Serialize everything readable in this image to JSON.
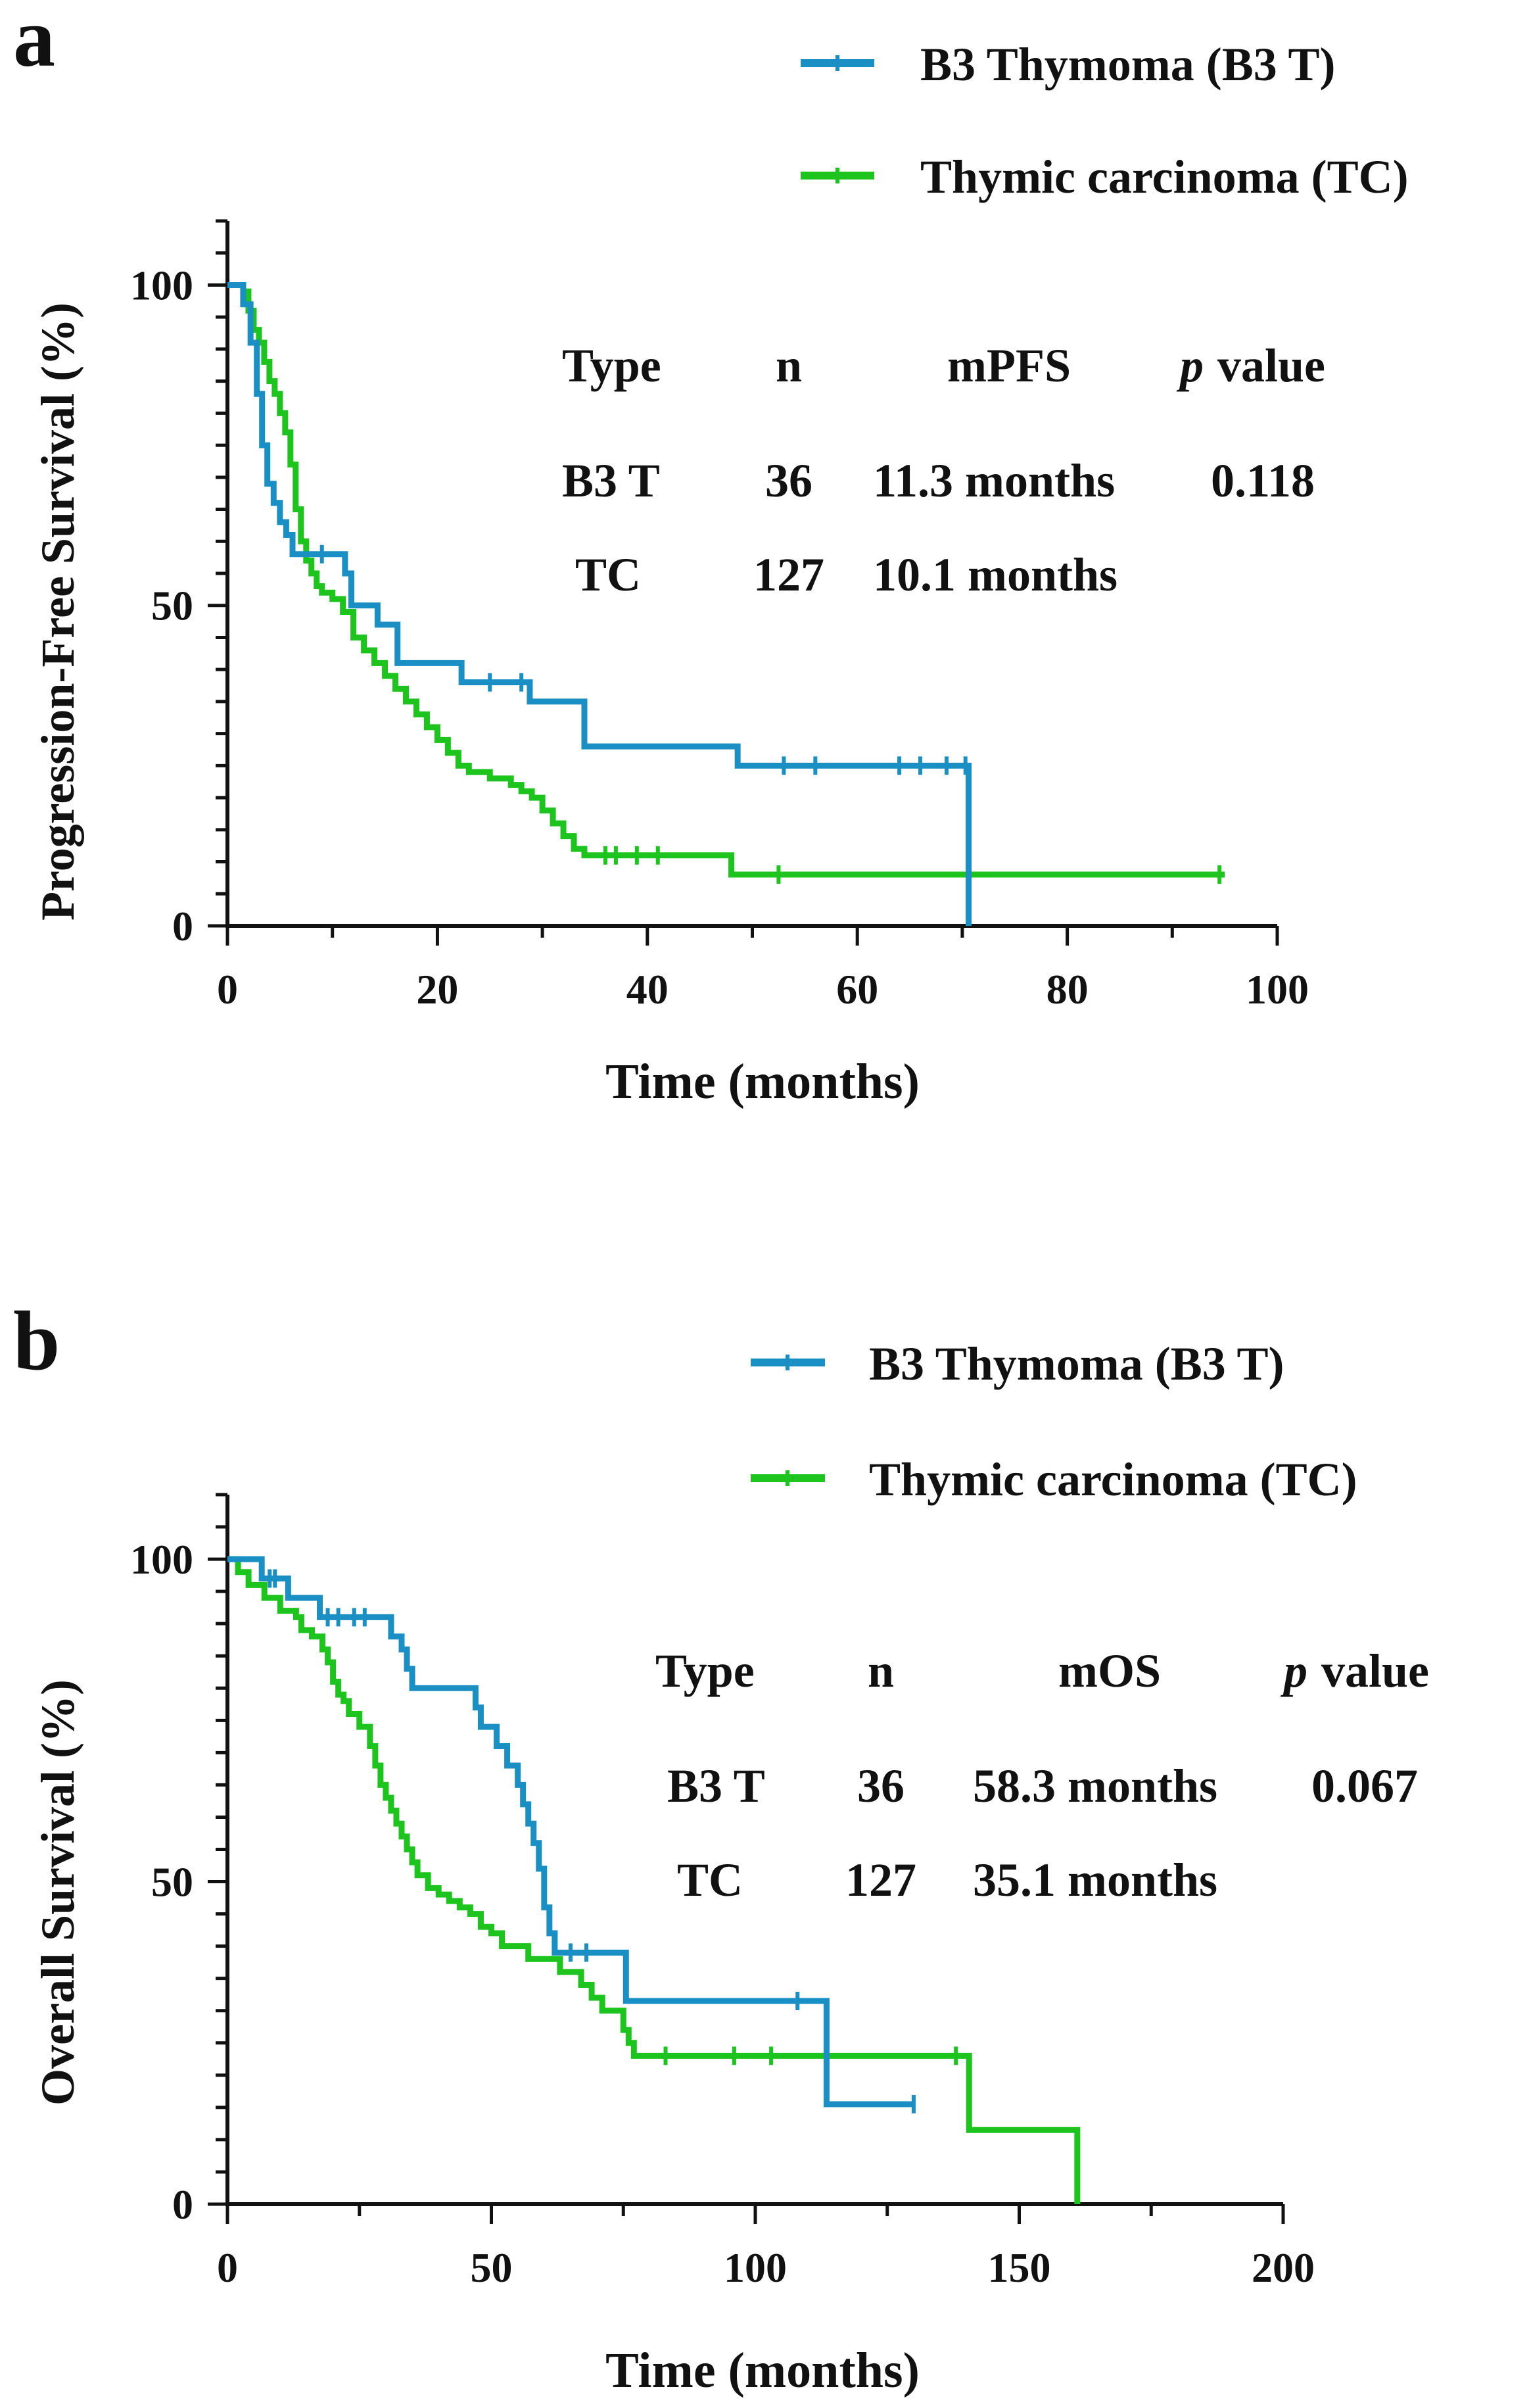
{
  "chart_data": [
    {
      "panel_label": "a",
      "type": "line",
      "subtype": "kaplan-meier",
      "xlabel": "Time (months)",
      "ylabel": "Progression-Free Survival (%)",
      "xlim": [
        0,
        100
      ],
      "ylim": [
        0,
        110
      ],
      "xticks": [
        0,
        20,
        40,
        60,
        80,
        100
      ],
      "yticks": [
        0,
        50,
        100
      ],
      "legend_position": "top-right",
      "series": [
        {
          "name": "B3 Thymoma (B3 T)",
          "color": "#1a8fc4",
          "steps": [
            [
              0,
              100
            ],
            [
              1,
              100
            ],
            [
              1.5,
              97
            ],
            [
              2.2,
              91
            ],
            [
              2.8,
              83
            ],
            [
              3.3,
              75
            ],
            [
              3.8,
              69
            ],
            [
              4.4,
              66
            ],
            [
              5,
              63
            ],
            [
              5.6,
              61
            ],
            [
              6.2,
              58
            ],
            [
              11,
              58
            ],
            [
              11.2,
              55
            ],
            [
              11.8,
              50
            ],
            [
              14,
              50
            ],
            [
              14.3,
              47
            ],
            [
              15.8,
              47
            ],
            [
              16.2,
              41
            ],
            [
              22,
              41
            ],
            [
              22.3,
              38
            ],
            [
              28.5,
              38
            ],
            [
              28.8,
              35
            ],
            [
              33.5,
              35
            ],
            [
              34,
              28
            ],
            [
              48.3,
              28
            ],
            [
              48.6,
              25
            ],
            [
              70.6,
              25
            ],
            [
              70.6,
              0
            ]
          ],
          "censored": [
            [
              9,
              58
            ],
            [
              25,
              38
            ],
            [
              28,
              38
            ],
            [
              53,
              25
            ],
            [
              56,
              25
            ],
            [
              64,
              25
            ],
            [
              66,
              25
            ],
            [
              68.5,
              25
            ],
            [
              70.3,
              25
            ]
          ]
        },
        {
          "name": "Thymic carcinoma (TC)",
          "color": "#1dc41d",
          "steps": [
            [
              0,
              100
            ],
            [
              1.5,
              99
            ],
            [
              2,
              96
            ],
            [
              2.5,
              93
            ],
            [
              3,
              91
            ],
            [
              3.5,
              88
            ],
            [
              4,
              85
            ],
            [
              4.5,
              83
            ],
            [
              5,
              80
            ],
            [
              5.5,
              77
            ],
            [
              6,
              72
            ],
            [
              6.5,
              65
            ],
            [
              7,
              60
            ],
            [
              7.5,
              57
            ],
            [
              8,
              55
            ],
            [
              8.5,
              53
            ],
            [
              9,
              52
            ],
            [
              10,
              51
            ],
            [
              11,
              49
            ],
            [
              12,
              45
            ],
            [
              13,
              43
            ],
            [
              14,
              41
            ],
            [
              15,
              39
            ],
            [
              16,
              37
            ],
            [
              17,
              35
            ],
            [
              18,
              33
            ],
            [
              19,
              31
            ],
            [
              20,
              29
            ],
            [
              21,
              27
            ],
            [
              22,
              25
            ],
            [
              23,
              24
            ],
            [
              25,
              23
            ],
            [
              27,
              22
            ],
            [
              28,
              21
            ],
            [
              29,
              20
            ],
            [
              30,
              18
            ],
            [
              31,
              16
            ],
            [
              32,
              14
            ],
            [
              33,
              12
            ],
            [
              34,
              11
            ],
            [
              40,
              11
            ],
            [
              48,
              8
            ],
            [
              95,
              8
            ]
          ],
          "censored": [
            [
              36,
              11
            ],
            [
              37,
              11
            ],
            [
              39,
              11
            ],
            [
              41,
              11
            ],
            [
              52.5,
              8
            ],
            [
              94.5,
              8
            ]
          ]
        }
      ],
      "stats_table": {
        "headers": [
          "Type",
          "n",
          "mPFS",
          "value"
        ],
        "p_label": "p",
        "rows": [
          [
            "B3 T",
            "36",
            "11.3 months",
            "0.118"
          ],
          [
            "TC",
            "127",
            "10.1 months",
            ""
          ]
        ]
      }
    },
    {
      "panel_label": "b",
      "type": "line",
      "subtype": "kaplan-meier",
      "xlabel": "Time (months)",
      "ylabel": "Overall Survival (%)",
      "xlim": [
        0,
        200
      ],
      "ylim": [
        0,
        110
      ],
      "xticks": [
        0,
        50,
        100,
        150,
        200
      ],
      "yticks": [
        0,
        50,
        100
      ],
      "legend_position": "top-right",
      "series": [
        {
          "name": "B3 Thymoma (B3 T)",
          "color": "#1a8fc4",
          "steps": [
            [
              0,
              100
            ],
            [
              6,
              100
            ],
            [
              6.5,
              97
            ],
            [
              11,
              97
            ],
            [
              11.5,
              94
            ],
            [
              17,
              94
            ],
            [
              17.5,
              91
            ],
            [
              30,
              91
            ],
            [
              31,
              88
            ],
            [
              33,
              86
            ],
            [
              34,
              83
            ],
            [
              35,
              80
            ],
            [
              46,
              80
            ],
            [
              47,
              77
            ],
            [
              48,
              74
            ],
            [
              51,
              71
            ],
            [
              53,
              68
            ],
            [
              55,
              65
            ],
            [
              56,
              62
            ],
            [
              57,
              59
            ],
            [
              58,
              56
            ],
            [
              59,
              52
            ],
            [
              60,
              46
            ],
            [
              61,
              42
            ],
            [
              62,
              39
            ],
            [
              75,
              39
            ],
            [
              75.5,
              31.5
            ],
            [
              113,
              31.5
            ],
            [
              113.5,
              15.5
            ],
            [
              130,
              15.5
            ]
          ],
          "censored": [
            [
              8,
              97
            ],
            [
              9,
              97
            ],
            [
              19,
              91
            ],
            [
              21,
              91
            ],
            [
              24,
              91
            ],
            [
              26,
              91
            ],
            [
              65,
              39
            ],
            [
              68,
              39
            ],
            [
              108,
              31.5
            ],
            [
              130,
              15.5
            ]
          ]
        },
        {
          "name": "Thymic carcinoma (TC)",
          "color": "#1dc41d",
          "steps": [
            [
              0,
              100
            ],
            [
              2,
              98
            ],
            [
              4,
              96
            ],
            [
              7,
              94
            ],
            [
              10,
              92
            ],
            [
              13,
              91
            ],
            [
              14,
              89
            ],
            [
              16,
              88
            ],
            [
              18,
              86
            ],
            [
              19,
              84
            ],
            [
              20,
              81
            ],
            [
              21,
              79
            ],
            [
              22,
              78
            ],
            [
              23,
              76
            ],
            [
              25,
              74
            ],
            [
              27,
              71
            ],
            [
              28,
              68
            ],
            [
              29,
              65
            ],
            [
              30,
              63
            ],
            [
              31,
              61
            ],
            [
              32,
              59
            ],
            [
              33,
              57
            ],
            [
              34,
              55
            ],
            [
              35,
              53
            ],
            [
              36,
              51
            ],
            [
              38,
              49
            ],
            [
              40,
              48
            ],
            [
              42,
              47
            ],
            [
              44,
              46
            ],
            [
              46,
              45
            ],
            [
              48,
              43
            ],
            [
              50,
              42
            ],
            [
              52,
              40
            ],
            [
              56,
              40
            ],
            [
              57,
              38
            ],
            [
              62,
              38
            ],
            [
              63,
              36
            ],
            [
              66,
              36
            ],
            [
              67,
              34
            ],
            [
              69,
              32
            ],
            [
              71,
              30
            ],
            [
              74,
              30
            ],
            [
              75,
              27
            ],
            [
              76,
              25
            ],
            [
              77,
              23
            ],
            [
              140,
              23
            ],
            [
              140.5,
              11.5
            ],
            [
              161,
              11.5
            ],
            [
              161,
              0
            ]
          ],
          "censored": [
            [
              83,
              23
            ],
            [
              96,
              23
            ],
            [
              103,
              23
            ],
            [
              138,
              23
            ]
          ]
        }
      ],
      "stats_table": {
        "headers": [
          "Type",
          "n",
          "mOS",
          "value"
        ],
        "p_label": "p",
        "rows": [
          [
            "B3 T",
            "36",
            "58.3 months",
            "0.067"
          ],
          [
            "TC",
            "127",
            "35.1 months",
            ""
          ]
        ]
      }
    }
  ]
}
